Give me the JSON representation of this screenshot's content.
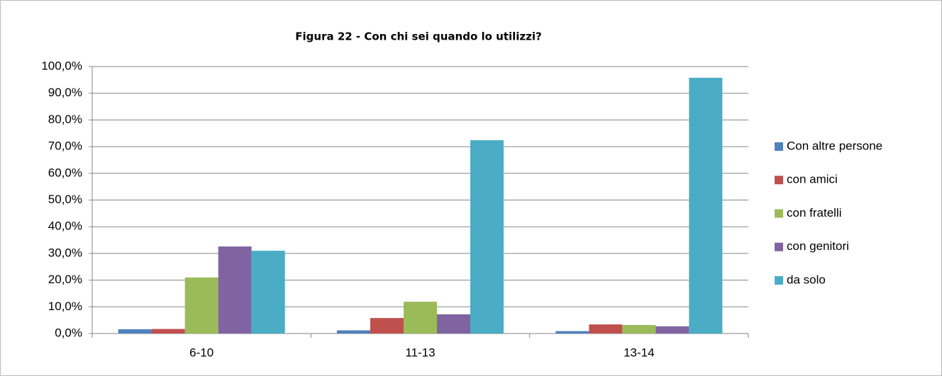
{
  "chart_data": {
    "type": "bar",
    "title": "Figura 22 -  Con chi sei quando lo utilizzi?",
    "categories": [
      "6-10",
      "11-13",
      "13-14"
    ],
    "series": [
      {
        "name": "Con altre persone",
        "color": "#4f81bd",
        "values": [
          1.6,
          1.2,
          0.9
        ]
      },
      {
        "name": "con amici",
        "color": "#c0504d",
        "values": [
          1.7,
          5.8,
          3.4
        ]
      },
      {
        "name": "con fratelli",
        "color": "#9bbb59",
        "values": [
          21.0,
          11.9,
          3.2
        ]
      },
      {
        "name": "con genitori",
        "color": "#8064a2",
        "values": [
          32.6,
          7.2,
          2.7
        ]
      },
      {
        "name": "da solo",
        "color": "#4bacc6",
        "values": [
          31.0,
          72.4,
          95.8
        ]
      }
    ],
    "ylim": [
      0,
      100
    ],
    "yticks": [
      {
        "value": 0,
        "label": "0,0%"
      },
      {
        "value": 10,
        "label": "10,0%"
      },
      {
        "value": 20,
        "label": "20,0%"
      },
      {
        "value": 30,
        "label": "30,0%"
      },
      {
        "value": 40,
        "label": "40,0%"
      },
      {
        "value": 50,
        "label": "50,0%"
      },
      {
        "value": 60,
        "label": "60,0%"
      },
      {
        "value": 70,
        "label": "70,0%"
      },
      {
        "value": 80,
        "label": "80,0%"
      },
      {
        "value": 90,
        "label": "90,0%"
      },
      {
        "value": 100,
        "label": "100,0%"
      }
    ],
    "grid": true,
    "legend": "right"
  }
}
